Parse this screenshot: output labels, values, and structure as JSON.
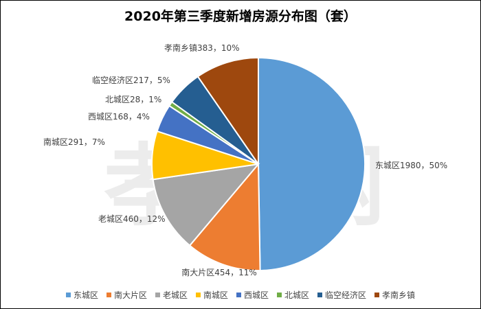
{
  "chart_data": {
    "type": "pie",
    "title": "2020年第三季度新增房源分布图（套）",
    "slices": [
      {
        "name": "东城区",
        "value": 1980,
        "percent": "50%",
        "color": "#5B9BD5"
      },
      {
        "name": "南大片区",
        "value": 454,
        "percent": "11%",
        "color": "#ED7D31"
      },
      {
        "name": "老城区",
        "value": 460,
        "percent": "12%",
        "color": "#A5A5A5"
      },
      {
        "name": "南城区",
        "value": 291,
        "percent": "7%",
        "color": "#FFC000"
      },
      {
        "name": "西城区",
        "value": 168,
        "percent": "4%",
        "color": "#4472C4"
      },
      {
        "name": "北城区",
        "value": 28,
        "percent": "1%",
        "color": "#70AD47"
      },
      {
        "name": "临空经济区",
        "value": 217,
        "percent": "5%",
        "color": "#255E91"
      },
      {
        "name": "孝南乡镇",
        "value": 383,
        "percent": "10%",
        "color": "#9E480E"
      }
    ],
    "legend_position": "bottom",
    "watermark": "孝情网"
  }
}
